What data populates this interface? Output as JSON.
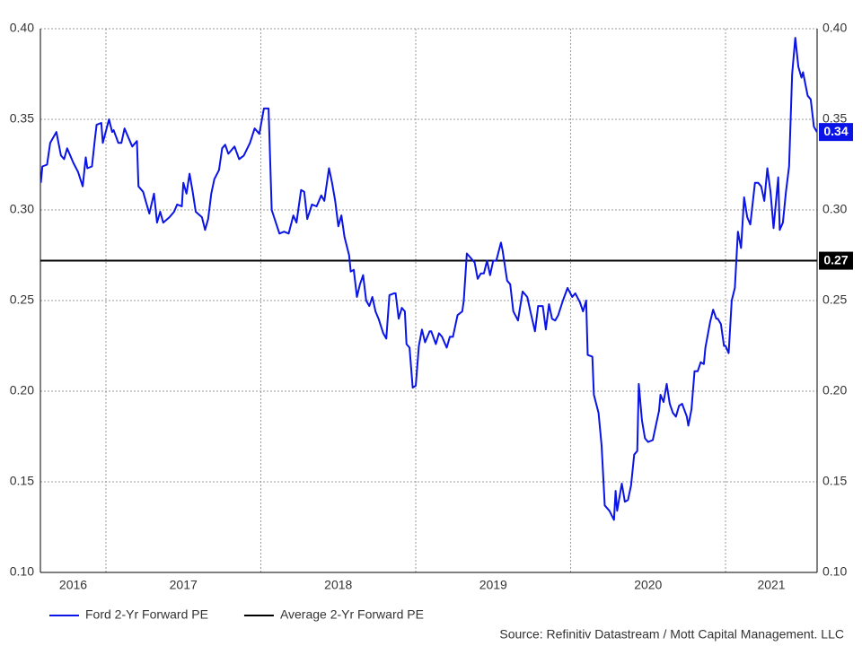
{
  "chart_data": {
    "type": "line",
    "source": "Source: Refinitiv Datastream / Mott Capital Management. LLC",
    "xlim": [
      2016.577,
      2021.591
    ],
    "xgrid": [
      2017,
      2018,
      2019,
      2020,
      2021
    ],
    "year_labels": [
      "2016",
      "2017",
      "2018",
      "2019",
      "2020",
      "2021"
    ],
    "ylim": [
      0.1,
      0.4
    ],
    "yticks": [
      {
        "value": 0.1,
        "label": "0.10"
      },
      {
        "value": 0.15,
        "label": "0.15"
      },
      {
        "value": 0.2,
        "label": "0.20"
      },
      {
        "value": 0.25,
        "label": "0.25"
      },
      {
        "value": 0.3,
        "label": "0.30"
      },
      {
        "value": 0.35,
        "label": "0.35"
      },
      {
        "value": 0.4,
        "label": "0.40"
      }
    ],
    "y2lim": [
      0.1,
      0.4
    ],
    "y2ticks": [
      {
        "value": 0.1,
        "label": "0.10"
      },
      {
        "value": 0.15,
        "label": "0.15"
      },
      {
        "value": 0.2,
        "label": "0.20"
      },
      {
        "value": 0.25,
        "label": "0.25"
      },
      {
        "value": 0.3,
        "label": "0.30"
      },
      {
        "value": 0.35,
        "label": "0.35"
      },
      {
        "value": 0.4,
        "label": "0.40"
      }
    ],
    "grid": true,
    "legend": "bottom-left",
    "x": [
      2016.58,
      2016.59,
      2016.62,
      2016.64,
      2016.68,
      2016.71,
      2016.73,
      2016.75,
      2016.79,
      2016.82,
      2016.85,
      2016.87,
      2016.88,
      2016.91,
      2016.93,
      2016.94,
      2016.97,
      2016.98,
      2017.02,
      2017.04,
      2017.05,
      2017.08,
      2017.1,
      2017.12,
      2017.14,
      2017.17,
      2017.2,
      2017.21,
      2017.24,
      2017.26,
      2017.28,
      2017.31,
      2017.33,
      2017.35,
      2017.37,
      2017.41,
      2017.44,
      2017.46,
      2017.49,
      2017.5,
      2017.52,
      2017.54,
      2017.56,
      2017.58,
      2017.62,
      2017.64,
      2017.66,
      2017.68,
      2017.7,
      2017.73,
      2017.75,
      2017.77,
      2017.79,
      2017.83,
      2017.86,
      2017.89,
      2017.93,
      2017.96,
      2017.99,
      2018.02,
      2018.05,
      2018.07,
      2018.12,
      2018.15,
      2018.18,
      2018.21,
      2018.23,
      2018.26,
      2018.28,
      2018.3,
      2018.33,
      2018.36,
      2018.39,
      2018.41,
      2018.44,
      2018.46,
      2018.48,
      2018.5,
      2018.52,
      2018.54,
      2018.57,
      2018.58,
      2018.6,
      2018.62,
      2018.64,
      2018.66,
      2018.68,
      2018.7,
      2018.72,
      2018.74,
      2018.76,
      2018.79,
      2018.81,
      2018.83,
      2018.86,
      2018.87,
      2018.89,
      2018.91,
      2018.93,
      2018.94,
      2018.96,
      2018.98,
      2019.0,
      2019.02,
      2019.04,
      2019.06,
      2019.09,
      2019.1,
      2019.13,
      2019.15,
      2019.17,
      2019.2,
      2019.22,
      2019.24,
      2019.27,
      2019.3,
      2019.31,
      2019.33,
      2019.35,
      2019.38,
      2019.4,
      2019.42,
      2019.44,
      2019.46,
      2019.48,
      2019.5,
      2019.52,
      2019.55,
      2019.56,
      2019.59,
      2019.61,
      2019.63,
      2019.66,
      2019.69,
      2019.72,
      2019.74,
      2019.77,
      2019.79,
      2019.82,
      2019.84,
      2019.86,
      2019.88,
      2019.9,
      2019.92,
      2019.95,
      2019.98,
      2020.01,
      2020.03,
      2020.06,
      2020.08,
      2020.1,
      2020.11,
      2020.14,
      2020.15,
      2020.18,
      2020.2,
      2020.22,
      2020.25,
      2020.28,
      2020.29,
      2020.3,
      2020.33,
      2020.35,
      2020.37,
      2020.39,
      2020.41,
      2020.43,
      2020.44,
      2020.46,
      2020.48,
      2020.5,
      2020.53,
      2020.55,
      2020.57,
      2020.58,
      2020.6,
      2020.62,
      2020.64,
      2020.66,
      2020.68,
      2020.7,
      2020.72,
      2020.75,
      2020.76,
      2020.78,
      2020.8,
      2020.82,
      2020.84,
      2020.86,
      2020.87,
      2020.9,
      2020.92,
      2020.94,
      2020.95,
      2020.97,
      2020.99,
      2021.0,
      2021.02,
      2021.04,
      2021.06,
      2021.08,
      2021.1,
      2021.12,
      2021.14,
      2021.16,
      2021.19,
      2021.21,
      2021.23,
      2021.25,
      2021.27,
      2021.29,
      2021.31,
      2021.34,
      2021.35,
      2021.37,
      2021.39,
      2021.41,
      2021.43,
      2021.45,
      2021.47,
      2021.49,
      2021.5,
      2021.53,
      2021.55,
      2021.57,
      2021.59
    ],
    "series": [
      {
        "name": "Ford 2-Yr Forward PE",
        "color": "#0a14e6",
        "end_label": "0.34",
        "values": [
          0.315,
          0.324,
          0.325,
          0.337,
          0.343,
          0.33,
          0.328,
          0.334,
          0.326,
          0.321,
          0.313,
          0.329,
          0.323,
          0.324,
          0.34,
          0.347,
          0.348,
          0.337,
          0.35,
          0.343,
          0.344,
          0.337,
          0.337,
          0.345,
          0.341,
          0.335,
          0.338,
          0.313,
          0.31,
          0.304,
          0.298,
          0.309,
          0.293,
          0.299,
          0.293,
          0.296,
          0.299,
          0.303,
          0.302,
          0.315,
          0.309,
          0.32,
          0.31,
          0.299,
          0.296,
          0.289,
          0.295,
          0.309,
          0.317,
          0.322,
          0.334,
          0.336,
          0.331,
          0.335,
          0.328,
          0.33,
          0.337,
          0.345,
          0.342,
          0.356,
          0.356,
          0.3,
          0.287,
          0.288,
          0.287,
          0.297,
          0.293,
          0.311,
          0.31,
          0.295,
          0.303,
          0.302,
          0.308,
          0.305,
          0.323,
          0.315,
          0.305,
          0.291,
          0.297,
          0.285,
          0.275,
          0.266,
          0.267,
          0.252,
          0.259,
          0.264,
          0.25,
          0.247,
          0.252,
          0.244,
          0.24,
          0.232,
          0.229,
          0.253,
          0.254,
          0.254,
          0.24,
          0.246,
          0.244,
          0.226,
          0.224,
          0.202,
          0.203,
          0.225,
          0.234,
          0.227,
          0.233,
          0.233,
          0.226,
          0.232,
          0.23,
          0.224,
          0.23,
          0.23,
          0.242,
          0.244,
          0.25,
          0.276,
          0.274,
          0.271,
          0.262,
          0.265,
          0.265,
          0.272,
          0.264,
          0.272,
          0.272,
          0.282,
          0.278,
          0.261,
          0.259,
          0.244,
          0.239,
          0.255,
          0.252,
          0.244,
          0.233,
          0.247,
          0.247,
          0.234,
          0.248,
          0.24,
          0.239,
          0.242,
          0.25,
          0.257,
          0.252,
          0.254,
          0.249,
          0.244,
          0.25,
          0.22,
          0.219,
          0.198,
          0.188,
          0.17,
          0.137,
          0.134,
          0.129,
          0.145,
          0.134,
          0.149,
          0.139,
          0.14,
          0.148,
          0.165,
          0.167,
          0.204,
          0.184,
          0.174,
          0.172,
          0.173,
          0.181,
          0.189,
          0.198,
          0.194,
          0.204,
          0.193,
          0.188,
          0.186,
          0.192,
          0.193,
          0.186,
          0.181,
          0.19,
          0.211,
          0.211,
          0.216,
          0.215,
          0.224,
          0.238,
          0.245,
          0.24,
          0.24,
          0.237,
          0.225,
          0.225,
          0.221,
          0.25,
          0.257,
          0.288,
          0.279,
          0.307,
          0.296,
          0.292,
          0.315,
          0.315,
          0.313,
          0.305,
          0.323,
          0.31,
          0.29,
          0.318,
          0.289,
          0.293,
          0.31,
          0.324,
          0.375,
          0.395,
          0.379,
          0.373,
          0.376,
          0.363,
          0.361,
          0.346,
          0.343
        ]
      }
    ],
    "reference_line": {
      "name": "Average 2-Yr Forward PE",
      "value": 0.272,
      "label": "0.27",
      "color": "#000000"
    }
  }
}
